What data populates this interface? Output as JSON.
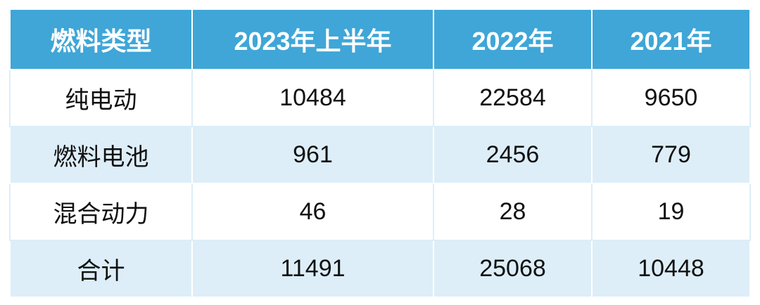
{
  "table": {
    "header": [
      "燃料类型",
      "2023年上半年",
      "2022年",
      "2021年"
    ],
    "rows": [
      [
        "纯电动",
        10484,
        22584,
        9650
      ],
      [
        "燃料电池",
        961,
        2456,
        779
      ],
      [
        "混合动力",
        46,
        28,
        19
      ],
      [
        "合计",
        11491,
        25068,
        10448
      ]
    ]
  }
}
